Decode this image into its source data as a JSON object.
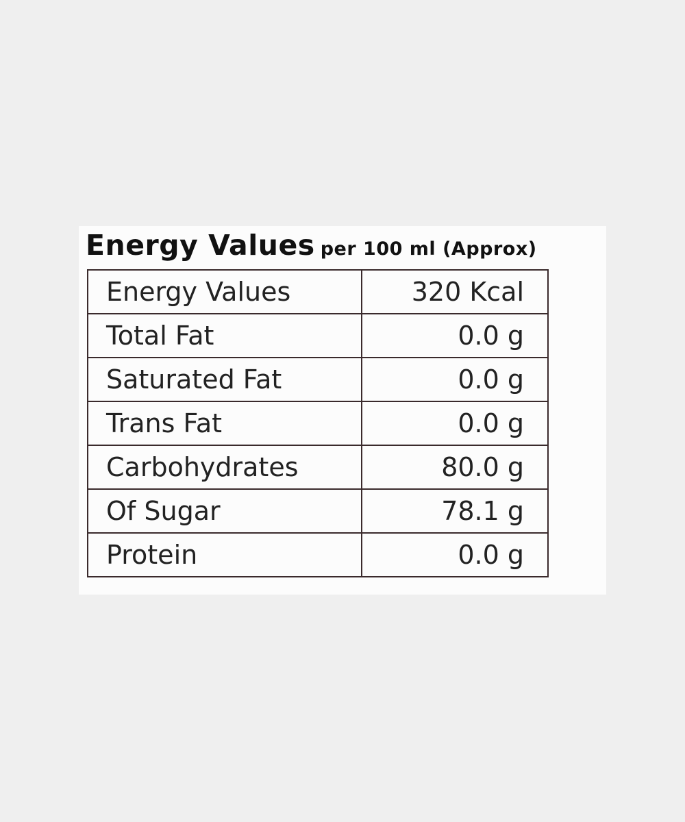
{
  "header": {
    "title": "Energy Values",
    "subtitle": "per 100 ml (Approx)"
  },
  "table": {
    "rows": [
      [
        "Energy Values",
        "320 Kcal"
      ],
      [
        "Total Fat",
        "0.0 g"
      ],
      [
        "Saturated Fat",
        "0.0 g"
      ],
      [
        "Trans Fat",
        "0.0 g"
      ],
      [
        "Carbohydrates",
        "80.0 g"
      ],
      [
        "Of Sugar",
        "78.1 g"
      ],
      [
        "Protein",
        "0.0 g"
      ]
    ]
  }
}
